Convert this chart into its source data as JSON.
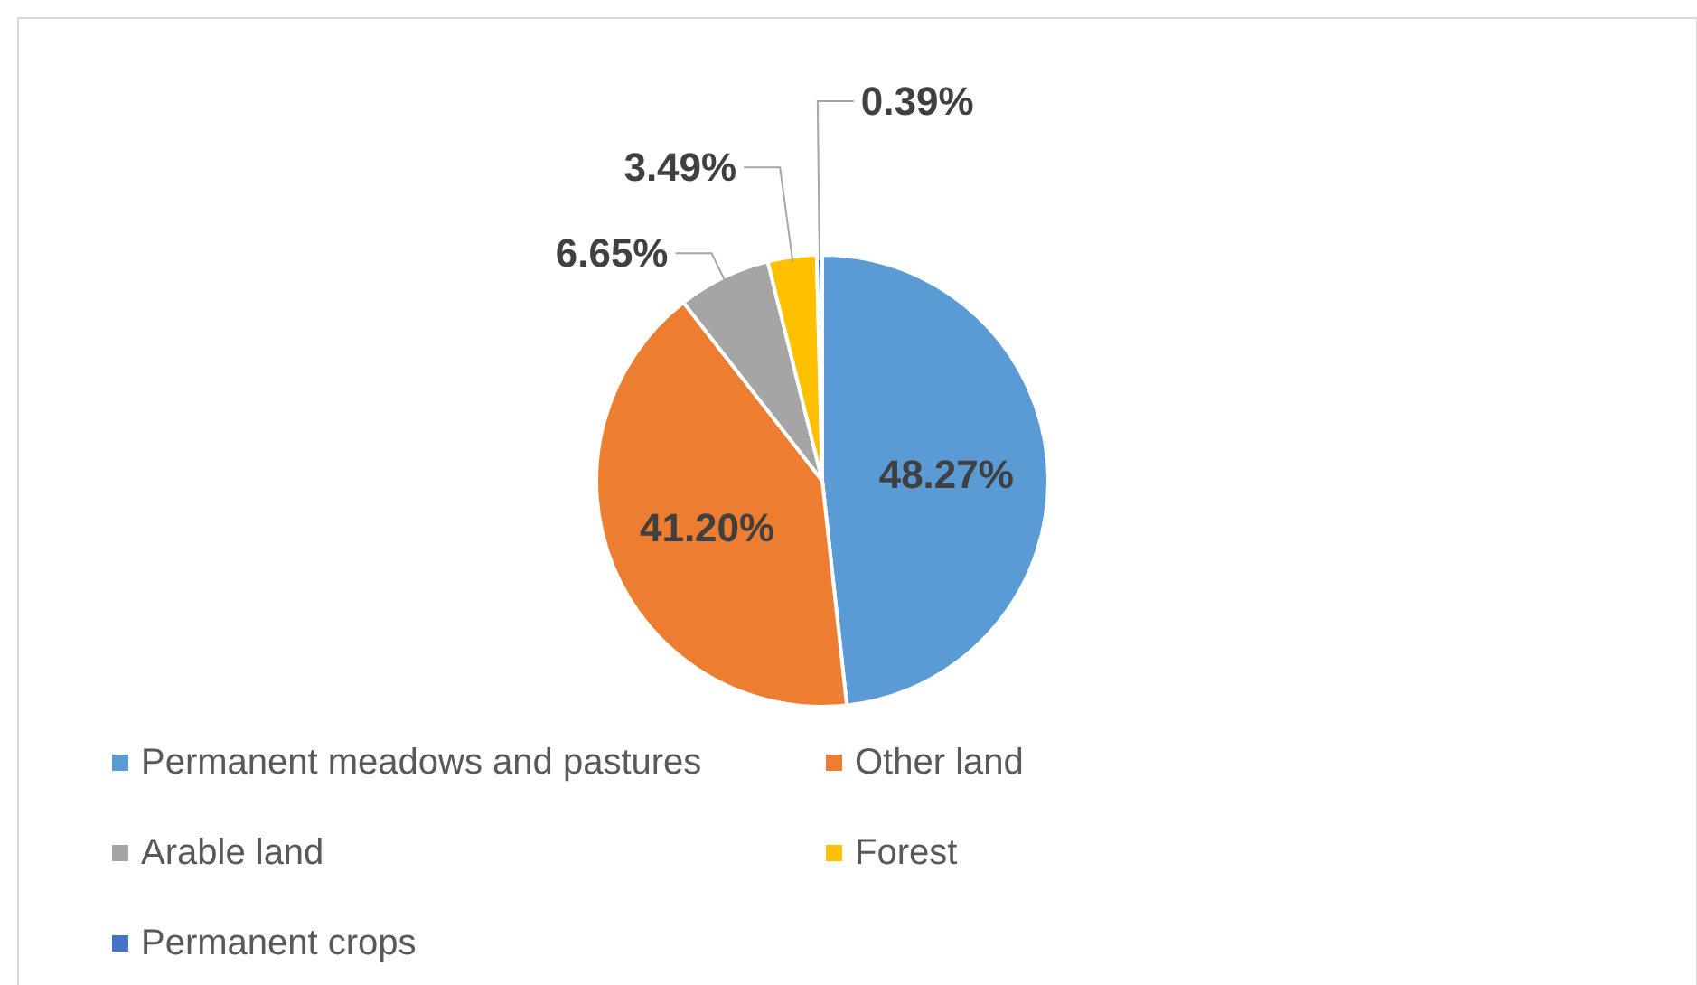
{
  "chart_data": {
    "type": "pie",
    "categories": [
      "Permanent meadows and pastures",
      "Other land",
      "Arable land",
      "Forest",
      "Permanent crops"
    ],
    "values": [
      48.27,
      41.2,
      6.65,
      3.49,
      0.39
    ],
    "value_labels": [
      "48.27%",
      "41.20%",
      "6.65%",
      "3.49%",
      "0.39%"
    ],
    "colors": [
      "#5b9bd5",
      "#ed7d31",
      "#a5a5a5",
      "#ffc000",
      "#4472c4"
    ],
    "legend": "bottom"
  }
}
